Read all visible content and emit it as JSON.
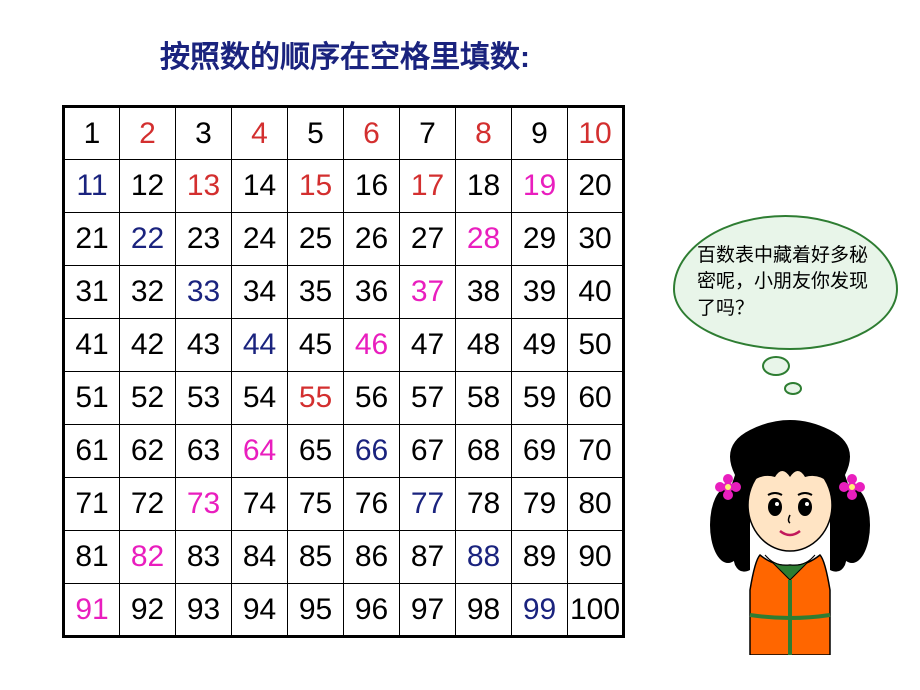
{
  "title": "按照数的顺序在空格里填数:",
  "bubble_text": "百数表中藏着好多秘密呢，小朋友你发现了吗？",
  "colors": {
    "black": "#000000",
    "blue": "#1a237e",
    "red": "#d32f2f",
    "magenta": "#e91ebe",
    "title_color": "#1a237e",
    "bubble_bg": "#e8f5e9",
    "bubble_border": "#2e7d32"
  },
  "grid": {
    "rows": 10,
    "cols": 10,
    "cells": [
      [
        {
          "v": "1",
          "c": "black"
        },
        {
          "v": "2",
          "c": "red"
        },
        {
          "v": "3",
          "c": "black"
        },
        {
          "v": "4",
          "c": "red"
        },
        {
          "v": "5",
          "c": "black"
        },
        {
          "v": "6",
          "c": "red"
        },
        {
          "v": "7",
          "c": "black"
        },
        {
          "v": "8",
          "c": "red"
        },
        {
          "v": "9",
          "c": "black"
        },
        {
          "v": "10",
          "c": "red"
        }
      ],
      [
        {
          "v": "11",
          "c": "blue"
        },
        {
          "v": "12",
          "c": "black"
        },
        {
          "v": "13",
          "c": "red"
        },
        {
          "v": "14",
          "c": "black"
        },
        {
          "v": "15",
          "c": "red"
        },
        {
          "v": "16",
          "c": "black"
        },
        {
          "v": "17",
          "c": "red"
        },
        {
          "v": "18",
          "c": "black"
        },
        {
          "v": "19",
          "c": "magenta"
        },
        {
          "v": "20",
          "c": "black"
        }
      ],
      [
        {
          "v": "21",
          "c": "black"
        },
        {
          "v": "22",
          "c": "blue"
        },
        {
          "v": "23",
          "c": "black"
        },
        {
          "v": "24",
          "c": "black"
        },
        {
          "v": "25",
          "c": "black"
        },
        {
          "v": "26",
          "c": "black"
        },
        {
          "v": "27",
          "c": "black"
        },
        {
          "v": "28",
          "c": "magenta"
        },
        {
          "v": "29",
          "c": "black"
        },
        {
          "v": "30",
          "c": "black"
        }
      ],
      [
        {
          "v": "31",
          "c": "black"
        },
        {
          "v": "32",
          "c": "black"
        },
        {
          "v": "33",
          "c": "blue"
        },
        {
          "v": "34",
          "c": "black"
        },
        {
          "v": "35",
          "c": "black"
        },
        {
          "v": "36",
          "c": "black"
        },
        {
          "v": "37",
          "c": "magenta"
        },
        {
          "v": "38",
          "c": "black"
        },
        {
          "v": "39",
          "c": "black"
        },
        {
          "v": "40",
          "c": "black"
        }
      ],
      [
        {
          "v": "41",
          "c": "black"
        },
        {
          "v": "42",
          "c": "black"
        },
        {
          "v": "43",
          "c": "black"
        },
        {
          "v": "44",
          "c": "blue"
        },
        {
          "v": "45",
          "c": "black"
        },
        {
          "v": "46",
          "c": "magenta"
        },
        {
          "v": "47",
          "c": "black"
        },
        {
          "v": "48",
          "c": "black"
        },
        {
          "v": "49",
          "c": "black"
        },
        {
          "v": "50",
          "c": "black"
        }
      ],
      [
        {
          "v": "51",
          "c": "black"
        },
        {
          "v": "52",
          "c": "black"
        },
        {
          "v": "53",
          "c": "black"
        },
        {
          "v": "54",
          "c": "black"
        },
        {
          "v": "55",
          "c": "red"
        },
        {
          "v": "56",
          "c": "black"
        },
        {
          "v": "57",
          "c": "black"
        },
        {
          "v": "58",
          "c": "black"
        },
        {
          "v": "59",
          "c": "black"
        },
        {
          "v": "60",
          "c": "black"
        }
      ],
      [
        {
          "v": "61",
          "c": "black"
        },
        {
          "v": "62",
          "c": "black"
        },
        {
          "v": "63",
          "c": "black"
        },
        {
          "v": "64",
          "c": "magenta"
        },
        {
          "v": "65",
          "c": "black"
        },
        {
          "v": "66",
          "c": "blue"
        },
        {
          "v": "67",
          "c": "black"
        },
        {
          "v": "68",
          "c": "black"
        },
        {
          "v": "69",
          "c": "black"
        },
        {
          "v": "70",
          "c": "black"
        }
      ],
      [
        {
          "v": "71",
          "c": "black"
        },
        {
          "v": "72",
          "c": "black"
        },
        {
          "v": "73",
          "c": "magenta"
        },
        {
          "v": "74",
          "c": "black"
        },
        {
          "v": "75",
          "c": "black"
        },
        {
          "v": "76",
          "c": "black"
        },
        {
          "v": "77",
          "c": "blue"
        },
        {
          "v": "78",
          "c": "black"
        },
        {
          "v": "79",
          "c": "black"
        },
        {
          "v": "80",
          "c": "black"
        }
      ],
      [
        {
          "v": "81",
          "c": "black"
        },
        {
          "v": "82",
          "c": "magenta"
        },
        {
          "v": "83",
          "c": "black"
        },
        {
          "v": "84",
          "c": "black"
        },
        {
          "v": "85",
          "c": "black"
        },
        {
          "v": "86",
          "c": "black"
        },
        {
          "v": "87",
          "c": "black"
        },
        {
          "v": "88",
          "c": "blue"
        },
        {
          "v": "89",
          "c": "black"
        },
        {
          "v": "90",
          "c": "black"
        }
      ],
      [
        {
          "v": "91",
          "c": "magenta"
        },
        {
          "v": "92",
          "c": "black"
        },
        {
          "v": "93",
          "c": "black"
        },
        {
          "v": "94",
          "c": "black"
        },
        {
          "v": "95",
          "c": "black"
        },
        {
          "v": "96",
          "c": "black"
        },
        {
          "v": "97",
          "c": "black"
        },
        {
          "v": "98",
          "c": "black"
        },
        {
          "v": "99",
          "c": "blue"
        },
        {
          "v": "100",
          "c": "black"
        }
      ]
    ]
  },
  "character": {
    "hair_color": "#000000",
    "face_color": "#ffe4c4",
    "shirt_color": "#ff6600",
    "shirt_trim": "#2e7d32",
    "flower_color": "#e91ebe"
  }
}
